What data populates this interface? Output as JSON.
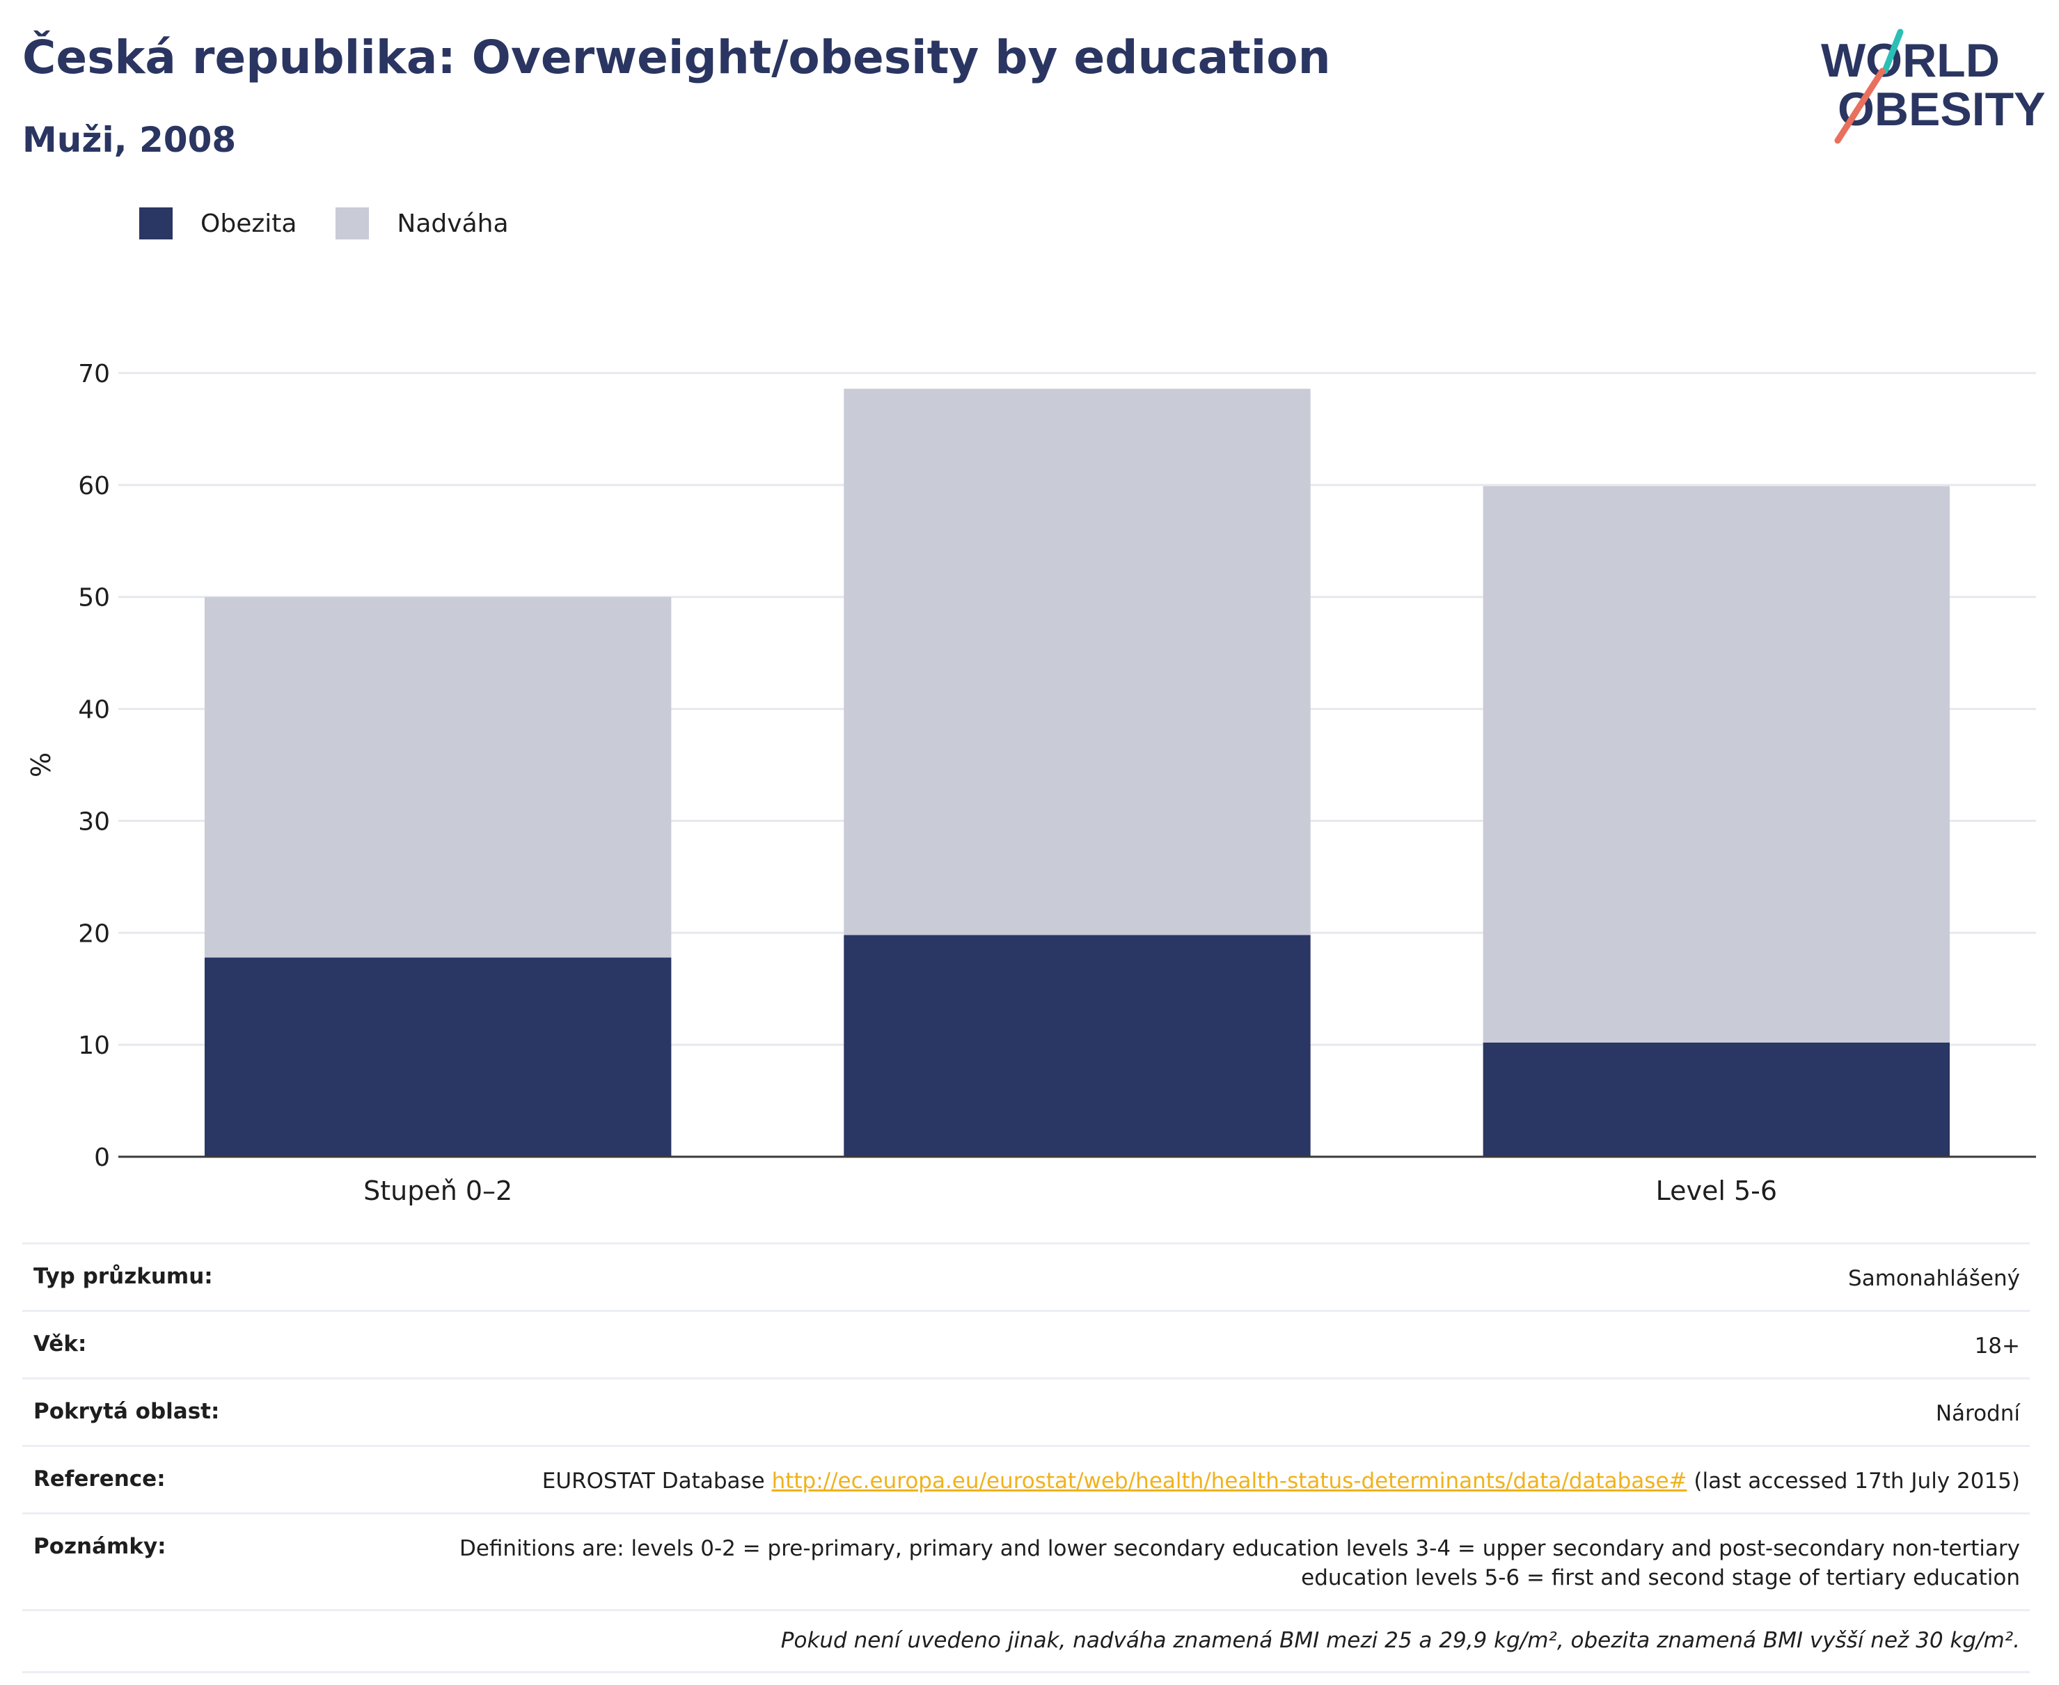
{
  "header": {
    "title": "Česká republika: Overweight/obesity by education",
    "subtitle": "Muži, 2008"
  },
  "logo": {
    "line1": "WORLD",
    "line2": "OBESITY"
  },
  "colors": {
    "obesity": "#2a3663",
    "overweight": "#c9cbd7",
    "title": "#2a3561",
    "link": "#f0b21b",
    "logo_teal": "#2bbfb6",
    "logo_coral": "#e8705d"
  },
  "legend": {
    "items": [
      {
        "label": "Obezita",
        "color": "#2a3663"
      },
      {
        "label": "Nadváha",
        "color": "#c9cbd7"
      }
    ]
  },
  "chart_data": {
    "type": "bar",
    "stacked": true,
    "categories": [
      "Stupeň 0–2",
      "",
      "Level 5-6"
    ],
    "series": [
      {
        "name": "Obezita",
        "values": [
          17.8,
          19.8,
          10.2
        ]
      },
      {
        "name": "Nadváha",
        "values": [
          32.2,
          48.8,
          49.7
        ]
      }
    ],
    "ylabel": "%",
    "xlabel": "",
    "ylim": [
      0,
      70
    ],
    "yticks": [
      0,
      10,
      20,
      30,
      40,
      50,
      60,
      70
    ],
    "grid": true
  },
  "info": {
    "rows": [
      {
        "label": "Typ průzkumu:",
        "value": "Samonahlášený"
      },
      {
        "label": "Věk:",
        "value": "18+"
      },
      {
        "label": "Pokrytá oblast:",
        "value": "Národní"
      }
    ],
    "reference": {
      "label": "Reference:",
      "prefix": "EUROSTAT Database ",
      "link": "http://ec.europa.eu/eurostat/web/health/health-status-determinants/data/database#",
      "suffix": " (last accessed 17th July 2015)"
    },
    "notes": {
      "label": "Poznámky:",
      "value": "Definitions are: levels 0-2 = pre-primary, primary and lower secondary education levels 3-4 = upper secondary and post-secondary non-tertiary education levels 5-6 = first and second stage of tertiary education"
    },
    "footnote": "Pokud není uvedeno jinak, nadváha znamená BMI mezi 25 a 29,9 kg/m², obezita znamená BMI vyšší než 30 kg/m²."
  }
}
